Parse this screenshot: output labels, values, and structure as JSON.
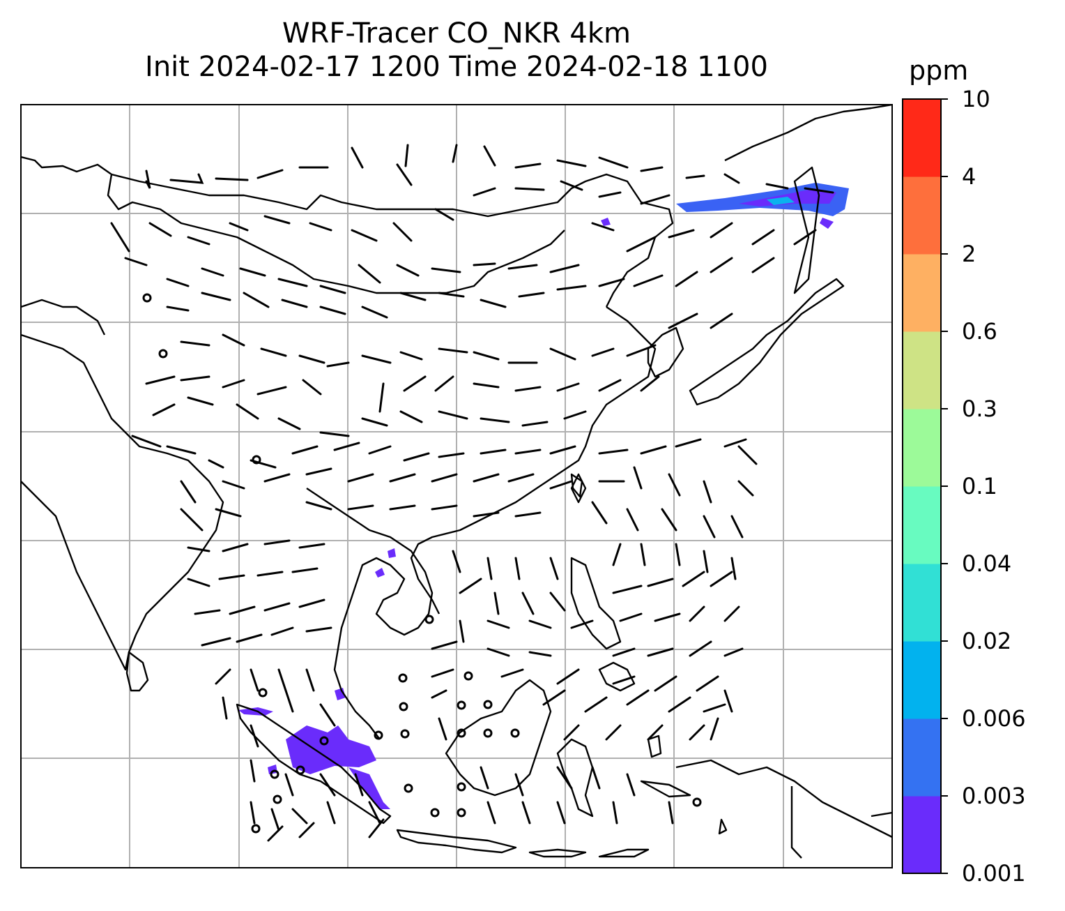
{
  "title": {
    "line1": "WRF-Tracer CO_NKR 4km",
    "line2": "Init 2024-02-17 1200 Time 2024-02-18 1100"
  },
  "colorbar": {
    "unit": "ppm",
    "tick_labels": [
      "10",
      "4",
      "2",
      "0.6",
      "0.3",
      "0.1",
      "0.04",
      "0.02",
      "0.006",
      "0.003",
      "0.001"
    ],
    "colors": [
      "#6a2cfb",
      "#3472f2",
      "#02b2ee",
      "#31e0d5",
      "#68fbc0",
      "#9cfa99",
      "#cee385",
      "#feb062",
      "#fe6f3c",
      "#ff2918"
    ]
  },
  "map": {
    "projection": "Plate Carree",
    "gridlines": true,
    "coastlines": true,
    "field": "CO_NKR tracer concentration",
    "wind": "barbs",
    "tracer_plumes": [
      {
        "region": "northeast near Korea/Japan Sea",
        "level": "0.003-0.006"
      },
      {
        "region": "Sumatra / Malay Peninsula",
        "level": "0.001-0.003"
      },
      {
        "region": "Gulf of Thailand",
        "level": "0.001-0.003"
      }
    ]
  }
}
